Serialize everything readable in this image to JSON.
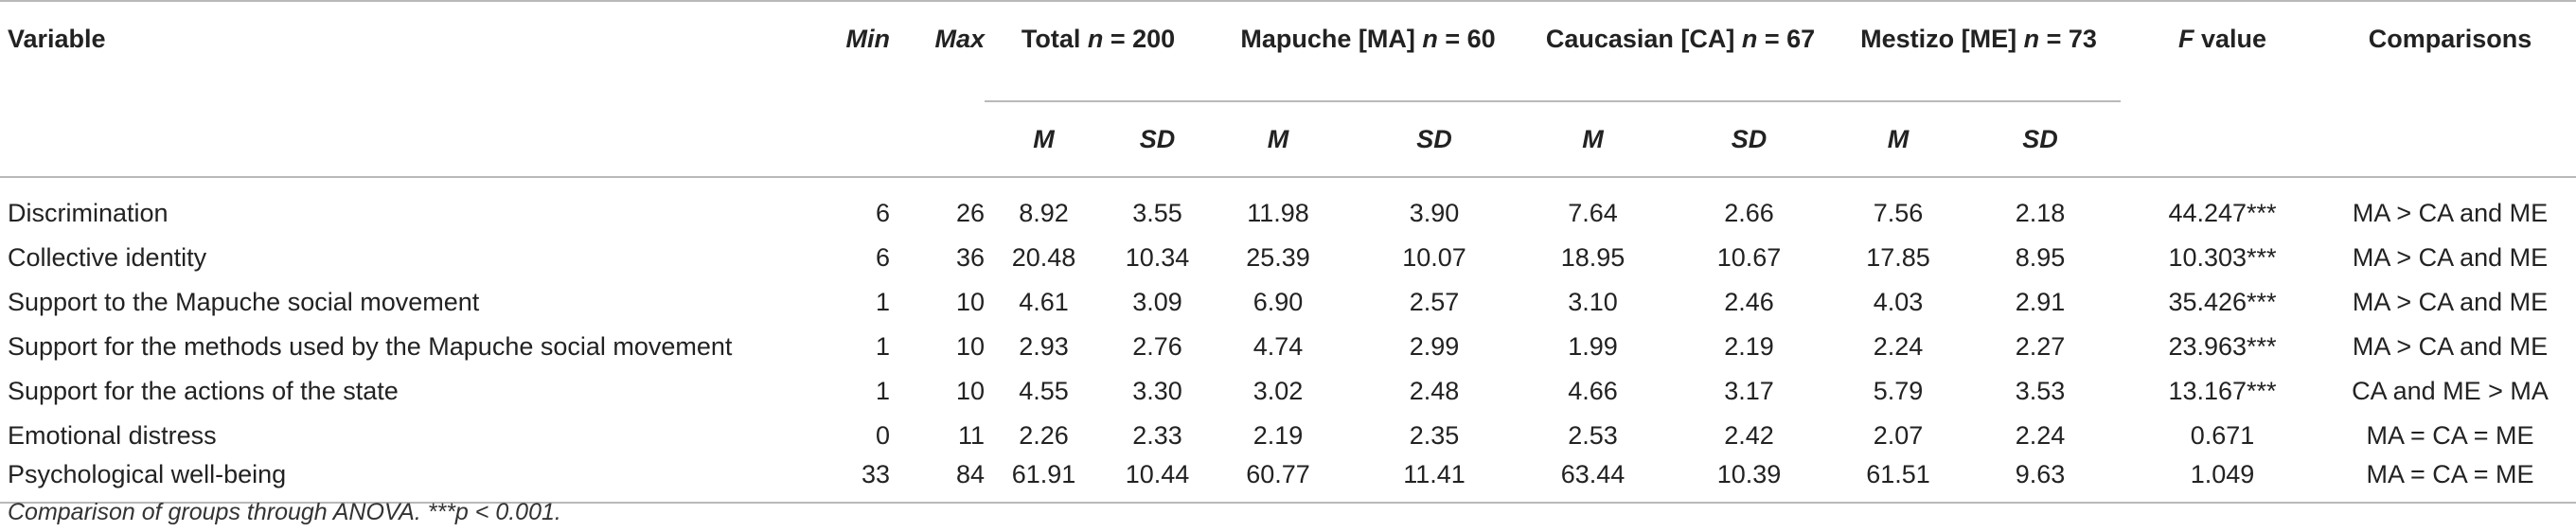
{
  "headers": {
    "variable": "Variable",
    "min": "Min",
    "max": "Max",
    "total": "Total n = 200",
    "total_pre": "Total ",
    "total_n": "n",
    "total_post": " = 200",
    "mapuche_pre": "Mapuche [MA] ",
    "mapuche_n": "n",
    "mapuche_post": " = 60",
    "caucasian_pre": "Caucasian [CA] ",
    "caucasian_n": "n",
    "caucasian_post": " = 67",
    "mestizo_pre": "Mestizo [ME] ",
    "mestizo_n": "n",
    "mestizo_post": " = 73",
    "f_pre": "F",
    "f_post": " value",
    "comparisons": "Comparisons",
    "m": "M",
    "sd": "SD"
  },
  "rows": [
    {
      "variable": "Discrimination",
      "min": "6",
      "max": "26",
      "total_m": "8.92",
      "total_sd": "3.55",
      "ma_m": "11.98",
      "ma_sd": "3.90",
      "ca_m": "7.64",
      "ca_sd": "2.66",
      "me_m": "7.56",
      "me_sd": "2.18",
      "f": "44.247***",
      "comparison": "MA > CA and ME"
    },
    {
      "variable": "Collective identity",
      "min": "6",
      "max": "36",
      "total_m": "20.48",
      "total_sd": "10.34",
      "ma_m": "25.39",
      "ma_sd": "10.07",
      "ca_m": "18.95",
      "ca_sd": "10.67",
      "me_m": "17.85",
      "me_sd": "8.95",
      "f": "10.303***",
      "comparison": "MA > CA and ME"
    },
    {
      "variable": "Support to the Mapuche social movement",
      "min": "1",
      "max": "10",
      "total_m": "4.61",
      "total_sd": "3.09",
      "ma_m": "6.90",
      "ma_sd": "2.57",
      "ca_m": "3.10",
      "ca_sd": "2.46",
      "me_m": "4.03",
      "me_sd": "2.91",
      "f": "35.426***",
      "comparison": "MA > CA and ME"
    },
    {
      "variable": "Support for the methods used by the Mapuche social movement",
      "min": "1",
      "max": "10",
      "total_m": "2.93",
      "total_sd": "2.76",
      "ma_m": "4.74",
      "ma_sd": "2.99",
      "ca_m": "1.99",
      "ca_sd": "2.19",
      "me_m": "2.24",
      "me_sd": "2.27",
      "f": "23.963***",
      "comparison": "MA > CA and ME"
    },
    {
      "variable": "Support for the actions of the state",
      "min": "1",
      "max": "10",
      "total_m": "4.55",
      "total_sd": "3.30",
      "ma_m": "3.02",
      "ma_sd": "2.48",
      "ca_m": "4.66",
      "ca_sd": "3.17",
      "me_m": "5.79",
      "me_sd": "3.53",
      "f": "13.167***",
      "comparison": "CA and ME > MA"
    },
    {
      "variable": "Emotional distress",
      "min": "0",
      "max": "11",
      "total_m": "2.26",
      "total_sd": "2.33",
      "ma_m": "2.19",
      "ma_sd": "2.35",
      "ca_m": "2.53",
      "ca_sd": "2.42",
      "me_m": "2.07",
      "me_sd": "2.24",
      "f": "0.671",
      "comparison": "MA = CA = ME"
    },
    {
      "variable": "Psychological well-being",
      "min": "33",
      "max": "84",
      "total_m": "61.91",
      "total_sd": "10.44",
      "ma_m": "60.77",
      "ma_sd": "11.41",
      "ca_m": "63.44",
      "ca_sd": "10.39",
      "me_m": "61.51",
      "me_sd": "9.63",
      "f": "1.049",
      "comparison": "MA = CA = ME"
    }
  ],
  "note": "Comparison of groups through ANOVA. ***p < 0.001."
}
